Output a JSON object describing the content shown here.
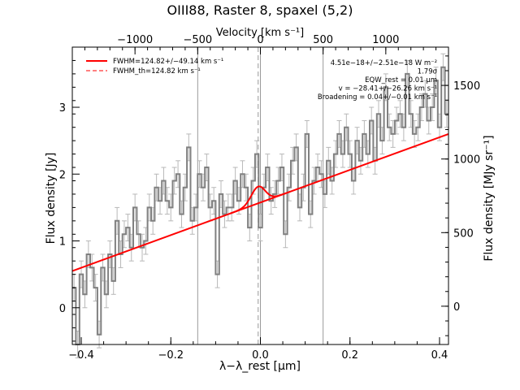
{
  "chart_data": {
    "type": "line",
    "title": "OIII88, Raster 8, spaxel (5,2)",
    "xlabel": "λ−λ_rest [μm]",
    "ylabel": "Flux density [Jy]",
    "top_xlabel": "Velocity [km s⁻¹]",
    "right_ylabel": "Flux density [MJy sr⁻¹]",
    "xlim": [
      -0.42,
      0.42
    ],
    "ylim": [
      -0.55,
      3.9
    ],
    "top_xlim": [
      -1500,
      1500
    ],
    "right_ylim": [
      -260,
      1760
    ],
    "x_ticks": [
      -0.4,
      -0.2,
      0.0,
      0.2,
      0.4
    ],
    "x_tick_labels": [
      "−0.4",
      "−0.2",
      "0.0",
      "0.2",
      "0.4"
    ],
    "y_ticks": [
      0,
      1,
      2,
      3
    ],
    "y_tick_labels": [
      "0",
      "1",
      "2",
      "3"
    ],
    "top_ticks": [
      -1000,
      -500,
      0,
      500,
      1000
    ],
    "top_tick_labels": [
      "−1000",
      "−500",
      "0",
      "500",
      "1000"
    ],
    "right_ticks": [
      0,
      500,
      1000,
      1500
    ],
    "right_tick_labels": [
      "0",
      "500",
      "1000",
      "1500"
    ],
    "vlines_gray": [
      -0.14,
      0.0,
      0.14
    ],
    "vline_dashed": -0.005,
    "colors": {
      "data": "#808080",
      "fit": "#ff0000",
      "axes": "#000000"
    },
    "legend": {
      "placement": "top-left",
      "entries": [
        {
          "label": "FWHM=124.82+/−49.14 km s⁻¹",
          "style": "solid"
        },
        {
          "label": "FWHM_th=124.82 km s⁻¹",
          "style": "dashed"
        }
      ]
    },
    "annotations": [
      "4.51e−18+/−2.51e−18 W m⁻²",
      "1.79σ",
      "EQW_rest = 0.01 μm",
      "v = −28.41+/−26.26 km s⁻¹",
      "Broadening = 0.04+/−0.01 km s⁻¹"
    ],
    "continuum": {
      "x": [
        -0.42,
        0.42
      ],
      "y": [
        0.55,
        2.6
      ]
    },
    "line_fit": {
      "center": -0.005,
      "sigma": 0.0155,
      "amplitude": 0.25
    },
    "series": [
      {
        "x": [
          -0.416,
          -0.408,
          -0.4,
          -0.392,
          -0.384,
          -0.376,
          -0.368,
          -0.36,
          -0.352,
          -0.344,
          -0.336,
          -0.328,
          -0.32,
          -0.312,
          -0.304,
          -0.296,
          -0.288,
          -0.28,
          -0.272,
          -0.264,
          -0.256,
          -0.248,
          -0.24,
          -0.232,
          -0.224,
          -0.216,
          -0.208,
          -0.2,
          -0.192,
          -0.184,
          -0.176,
          -0.168,
          -0.16,
          -0.152,
          -0.144,
          -0.136,
          -0.128,
          -0.12,
          -0.112,
          -0.104,
          -0.096,
          -0.088,
          -0.08,
          -0.072,
          -0.064,
          -0.056,
          -0.048,
          -0.04,
          -0.032,
          -0.024,
          -0.016,
          -0.008,
          0.0,
          0.008,
          0.016,
          0.024,
          0.032,
          0.04,
          0.048,
          0.056,
          0.064,
          0.072,
          0.08,
          0.088,
          0.096,
          0.104,
          0.112,
          0.12,
          0.128,
          0.136,
          0.144,
          0.152,
          0.16,
          0.168,
          0.176,
          0.184,
          0.192,
          0.2,
          0.208,
          0.216,
          0.224,
          0.232,
          0.24,
          0.248,
          0.256,
          0.264,
          0.272,
          0.28,
          0.288,
          0.296,
          0.304,
          0.312,
          0.32,
          0.328,
          0.336,
          0.344,
          0.352,
          0.36,
          0.368,
          0.376,
          0.384,
          0.392,
          0.4,
          0.408,
          0.416
        ],
        "y": [
          0.3,
          -0.55,
          0.5,
          0.2,
          0.8,
          0.6,
          0.3,
          -0.4,
          0.6,
          0.2,
          0.8,
          0.4,
          1.3,
          0.8,
          1.1,
          1.2,
          0.9,
          1.5,
          1.1,
          0.9,
          1.0,
          1.5,
          1.3,
          1.8,
          1.6,
          1.9,
          1.6,
          1.5,
          1.9,
          2.0,
          1.4,
          1.8,
          2.4,
          1.3,
          1.5,
          2.0,
          1.8,
          2.1,
          1.5,
          1.6,
          0.5,
          1.7,
          1.4,
          1.5,
          1.5,
          1.9,
          1.6,
          2.0,
          1.8,
          1.2,
          1.9,
          2.3,
          1.2,
          1.8,
          2.1,
          1.6,
          1.7,
          1.9,
          2.1,
          1.1,
          1.8,
          2.2,
          2.4,
          1.5,
          1.8,
          2.6,
          1.4,
          1.9,
          2.1,
          2.0,
          1.7,
          2.2,
          1.9,
          2.3,
          2.6,
          2.3,
          2.7,
          2.3,
          1.9,
          2.5,
          2.2,
          2.6,
          2.3,
          2.8,
          2.2,
          2.9,
          2.5,
          3.3,
          2.7,
          2.6,
          2.8,
          2.9,
          2.7,
          3.5,
          2.9,
          2.6,
          2.7,
          3.0,
          3.2,
          2.8,
          3.0,
          3.4,
          2.7,
          3.6,
          2.9
        ],
        "err": 0.2
      }
    ]
  }
}
